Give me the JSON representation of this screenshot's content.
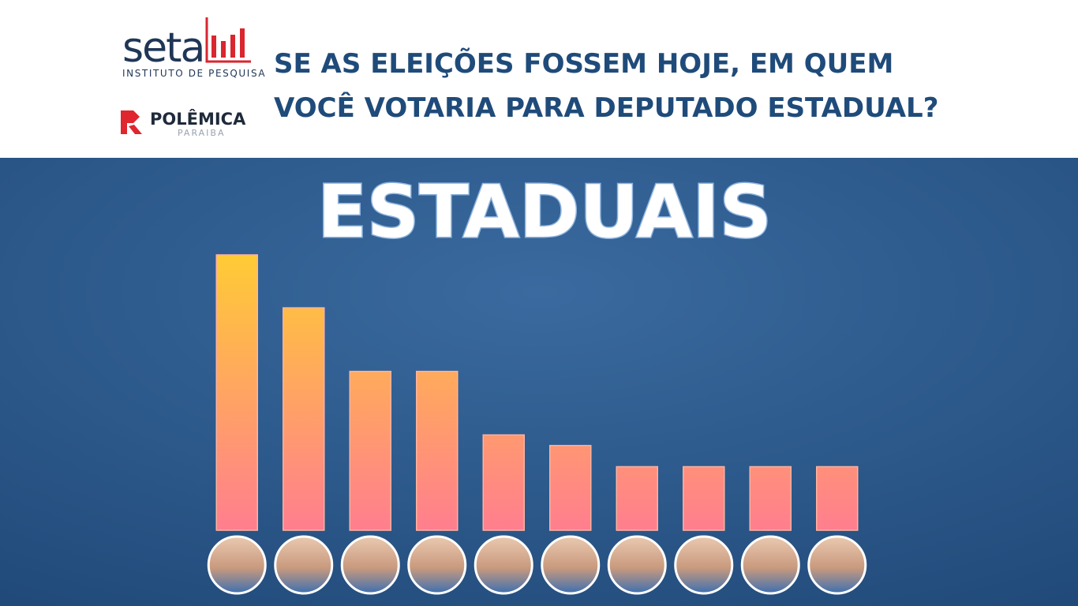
{
  "header": {
    "logo": "seta",
    "logo_subtitle": "INSTITUTO DE PESQUISA",
    "brand": "POLÊMICA",
    "brand_subtitle": "PARAIBA",
    "question_lines": [
      "SE AS ELEIÇÕES FOSSEM HOJE, EM QUEM",
      "VOCÊ VOTARIA PARA DEPUTADO ESTADUAL?"
    ]
  },
  "chart_data": {
    "type": "bar",
    "title": "ESTADUAIS",
    "categories": [
      null,
      null,
      null,
      null,
      null,
      null,
      null,
      null,
      null,
      null
    ],
    "values": [
      13,
      10.5,
      7.5,
      7.5,
      4.5,
      4,
      3,
      3,
      3,
      3
    ],
    "ylim": [
      0,
      13
    ],
    "colors": [
      "#ffcb35",
      "#ff7e8f"
    ]
  }
}
